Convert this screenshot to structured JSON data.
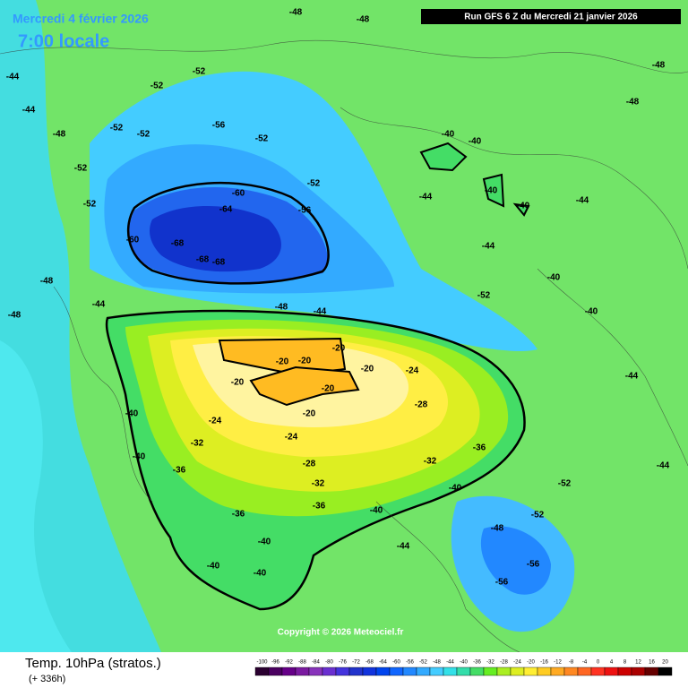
{
  "header": {
    "date": "Mercredi 4 février 2026",
    "time": "7:00 locale",
    "run": "Run GFS 6 Z du Mercredi 21 janvier 2026"
  },
  "footer": {
    "title": "Temp. 10hPa (stratos.)",
    "lead": "(+ 336h)",
    "copyright": "Copyright © 2026 Meteociel.fr"
  },
  "legend": {
    "labels": [
      -100,
      -96,
      -92,
      -88,
      -84,
      -80,
      -76,
      -72,
      -68,
      -64,
      -60,
      -56,
      -52,
      -48,
      -44,
      -40,
      -36,
      -32,
      -28,
      -24,
      -20,
      -16,
      -12,
      -8,
      -4,
      0,
      4,
      8,
      12,
      16,
      20
    ],
    "colors": [
      "#2a0030",
      "#4a0060",
      "#660088",
      "#7a1aa0",
      "#8833bb",
      "#6a2fd0",
      "#4433dd",
      "#2233cc",
      "#1133dd",
      "#0044ee",
      "#1166ff",
      "#2288ff",
      "#33aaff",
      "#44ccff",
      "#33e0e8",
      "#33ddaa",
      "#44dd66",
      "#66ee22",
      "#aaee22",
      "#ddee22",
      "#ffee33",
      "#ffcc22",
      "#ffaa22",
      "#ff8822",
      "#ff6622",
      "#ff3322",
      "#ee1111",
      "#cc0000",
      "#aa0000",
      "#660000",
      "#000000"
    ]
  },
  "contour_labels": [
    -48,
    -48,
    -44,
    -44,
    -48,
    -52,
    -52,
    -52,
    -52,
    -52,
    -52,
    -56,
    -52,
    -52,
    -56,
    -60,
    -64,
    -68,
    -68,
    -68,
    -60,
    -48,
    -48,
    -44,
    -48,
    -44,
    -20,
    -20,
    -20,
    -20,
    -20,
    -20,
    -20,
    -24,
    -28,
    -24,
    -24,
    -32,
    -36,
    -28,
    -32,
    -32,
    -36,
    -40,
    -40,
    -36,
    -40,
    -40,
    -40,
    -36,
    -40,
    -44,
    -40,
    -48,
    -56,
    -56,
    -52,
    -52,
    -52,
    -40,
    -40,
    -40,
    -40,
    -40,
    -44,
    -44,
    -44,
    -48,
    -48,
    -40,
    -44,
    -44
  ]
}
